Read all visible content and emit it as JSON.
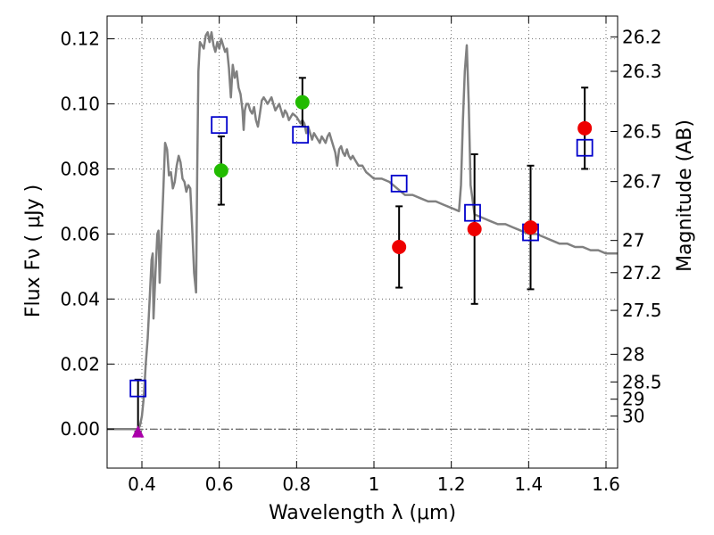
{
  "chart_data": {
    "type": "scatter",
    "xlabel": "Wavelength  λ (μm)",
    "ylabel": "Flux  Fν  ( μJy )",
    "ylabel_right": "Magnitude (AB)",
    "xlim": [
      0.31,
      1.63
    ],
    "ylim": [
      -0.012,
      0.127
    ],
    "grid": true,
    "x_ticks": [
      {
        "value": 0.4,
        "label": "0.4"
      },
      {
        "value": 0.6,
        "label": "0.6"
      },
      {
        "value": 0.8,
        "label": "0.8"
      },
      {
        "value": 1.0,
        "label": "1"
      },
      {
        "value": 1.2,
        "label": "1.2"
      },
      {
        "value": 1.4,
        "label": "1.4"
      },
      {
        "value": 1.6,
        "label": "1.6"
      }
    ],
    "y_ticks": [
      {
        "value": 0.0,
        "label": "0.00"
      },
      {
        "value": 0.02,
        "label": "0.02"
      },
      {
        "value": 0.04,
        "label": "0.04"
      },
      {
        "value": 0.06,
        "label": "0.06"
      },
      {
        "value": 0.08,
        "label": "0.08"
      },
      {
        "value": 0.1,
        "label": "0.10"
      },
      {
        "value": 0.12,
        "label": "0.12"
      }
    ],
    "right_ticks": [
      {
        "flux": 0.1206,
        "label": "26.2"
      },
      {
        "flux": 0.11,
        "label": "26.3"
      },
      {
        "flux": 0.0915,
        "label": "26.5"
      },
      {
        "flux": 0.0761,
        "label": "26.7"
      },
      {
        "flux": 0.058,
        "label": "27"
      },
      {
        "flux": 0.0481,
        "label": "27.2"
      },
      {
        "flux": 0.0365,
        "label": "27.5"
      },
      {
        "flux": 0.023,
        "label": "28"
      },
      {
        "flux": 0.0145,
        "label": "28.5"
      },
      {
        "flux": 0.0092,
        "label": "29"
      },
      {
        "flux": 0.004,
        "label": "30"
      }
    ],
    "series": [
      {
        "name": "model SED",
        "kind": "line",
        "color": "#808080",
        "points": [
          [
            0.31,
            0.0
          ],
          [
            0.39,
            0.0
          ],
          [
            0.395,
            0.001
          ],
          [
            0.4,
            0.004
          ],
          [
            0.405,
            0.01
          ],
          [
            0.41,
            0.02
          ],
          [
            0.415,
            0.028
          ],
          [
            0.42,
            0.04
          ],
          [
            0.425,
            0.052
          ],
          [
            0.428,
            0.054
          ],
          [
            0.43,
            0.034
          ],
          [
            0.435,
            0.048
          ],
          [
            0.44,
            0.06
          ],
          [
            0.443,
            0.061
          ],
          [
            0.446,
            0.045
          ],
          [
            0.45,
            0.058
          ],
          [
            0.455,
            0.072
          ],
          [
            0.46,
            0.088
          ],
          [
            0.465,
            0.086
          ],
          [
            0.47,
            0.078
          ],
          [
            0.475,
            0.079
          ],
          [
            0.48,
            0.074
          ],
          [
            0.485,
            0.076
          ],
          [
            0.49,
            0.081
          ],
          [
            0.495,
            0.084
          ],
          [
            0.5,
            0.082
          ],
          [
            0.505,
            0.077
          ],
          [
            0.51,
            0.076
          ],
          [
            0.515,
            0.073
          ],
          [
            0.52,
            0.075
          ],
          [
            0.525,
            0.074
          ],
          [
            0.53,
            0.062
          ],
          [
            0.535,
            0.048
          ],
          [
            0.54,
            0.042
          ],
          [
            0.543,
            0.08
          ],
          [
            0.546,
            0.11
          ],
          [
            0.55,
            0.119
          ],
          [
            0.555,
            0.118
          ],
          [
            0.56,
            0.117
          ],
          [
            0.565,
            0.121
          ],
          [
            0.57,
            0.122
          ],
          [
            0.575,
            0.119
          ],
          [
            0.58,
            0.122
          ],
          [
            0.585,
            0.118
          ],
          [
            0.59,
            0.116
          ],
          [
            0.595,
            0.119
          ],
          [
            0.6,
            0.117
          ],
          [
            0.605,
            0.12
          ],
          [
            0.61,
            0.118
          ],
          [
            0.615,
            0.116
          ],
          [
            0.62,
            0.117
          ],
          [
            0.625,
            0.111
          ],
          [
            0.63,
            0.102
          ],
          [
            0.635,
            0.112
          ],
          [
            0.64,
            0.108
          ],
          [
            0.645,
            0.11
          ],
          [
            0.65,
            0.105
          ],
          [
            0.655,
            0.103
          ],
          [
            0.66,
            0.098
          ],
          [
            0.663,
            0.092
          ],
          [
            0.666,
            0.098
          ],
          [
            0.67,
            0.1
          ],
          [
            0.675,
            0.1
          ],
          [
            0.68,
            0.098
          ],
          [
            0.685,
            0.097
          ],
          [
            0.69,
            0.099
          ],
          [
            0.695,
            0.095
          ],
          [
            0.7,
            0.093
          ],
          [
            0.705,
            0.097
          ],
          [
            0.71,
            0.101
          ],
          [
            0.715,
            0.102
          ],
          [
            0.72,
            0.101
          ],
          [
            0.725,
            0.1
          ],
          [
            0.73,
            0.101
          ],
          [
            0.735,
            0.102
          ],
          [
            0.74,
            0.1
          ],
          [
            0.745,
            0.098
          ],
          [
            0.75,
            0.099
          ],
          [
            0.755,
            0.1
          ],
          [
            0.76,
            0.098
          ],
          [
            0.765,
            0.096
          ],
          [
            0.77,
            0.098
          ],
          [
            0.775,
            0.097
          ],
          [
            0.78,
            0.095
          ],
          [
            0.785,
            0.096
          ],
          [
            0.79,
            0.097
          ],
          [
            0.8,
            0.096
          ],
          [
            0.81,
            0.094
          ],
          [
            0.815,
            0.095
          ],
          [
            0.82,
            0.094
          ],
          [
            0.825,
            0.091
          ],
          [
            0.83,
            0.093
          ],
          [
            0.835,
            0.091
          ],
          [
            0.84,
            0.089
          ],
          [
            0.845,
            0.091
          ],
          [
            0.85,
            0.09
          ],
          [
            0.855,
            0.089
          ],
          [
            0.86,
            0.088
          ],
          [
            0.865,
            0.09
          ],
          [
            0.87,
            0.089
          ],
          [
            0.875,
            0.088
          ],
          [
            0.88,
            0.09
          ],
          [
            0.885,
            0.091
          ],
          [
            0.89,
            0.089
          ],
          [
            0.895,
            0.087
          ],
          [
            0.9,
            0.085
          ],
          [
            0.905,
            0.081
          ],
          [
            0.91,
            0.086
          ],
          [
            0.915,
            0.087
          ],
          [
            0.92,
            0.085
          ],
          [
            0.925,
            0.084
          ],
          [
            0.93,
            0.086
          ],
          [
            0.935,
            0.084
          ],
          [
            0.94,
            0.083
          ],
          [
            0.945,
            0.084
          ],
          [
            0.95,
            0.083
          ],
          [
            0.96,
            0.081
          ],
          [
            0.97,
            0.081
          ],
          [
            0.98,
            0.079
          ],
          [
            0.99,
            0.078
          ],
          [
            1.0,
            0.077
          ],
          [
            1.02,
            0.077
          ],
          [
            1.04,
            0.076
          ],
          [
            1.06,
            0.074
          ],
          [
            1.08,
            0.072
          ],
          [
            1.1,
            0.072
          ],
          [
            1.12,
            0.071
          ],
          [
            1.14,
            0.07
          ],
          [
            1.16,
            0.07
          ],
          [
            1.18,
            0.069
          ],
          [
            1.2,
            0.068
          ],
          [
            1.22,
            0.067
          ],
          [
            1.225,
            0.075
          ],
          [
            1.23,
            0.095
          ],
          [
            1.235,
            0.11
          ],
          [
            1.24,
            0.118
          ],
          [
            1.245,
            0.1
          ],
          [
            1.25,
            0.075
          ],
          [
            1.26,
            0.066
          ],
          [
            1.28,
            0.065
          ],
          [
            1.3,
            0.064
          ],
          [
            1.32,
            0.063
          ],
          [
            1.34,
            0.063
          ],
          [
            1.36,
            0.062
          ],
          [
            1.38,
            0.061
          ],
          [
            1.4,
            0.06
          ],
          [
            1.42,
            0.06
          ],
          [
            1.44,
            0.059
          ],
          [
            1.46,
            0.058
          ],
          [
            1.48,
            0.057
          ],
          [
            1.5,
            0.057
          ],
          [
            1.52,
            0.056
          ],
          [
            1.54,
            0.056
          ],
          [
            1.56,
            0.055
          ],
          [
            1.58,
            0.055
          ],
          [
            1.6,
            0.054
          ],
          [
            1.63,
            0.054
          ]
        ]
      },
      {
        "name": "model photometry",
        "kind": "open-square",
        "color": "#0000cc",
        "points": [
          {
            "x": 0.39,
            "y": 0.0125
          },
          {
            "x": 0.6,
            "y": 0.0935
          },
          {
            "x": 0.81,
            "y": 0.0905
          },
          {
            "x": 1.065,
            "y": 0.0755
          },
          {
            "x": 1.255,
            "y": 0.0665
          },
          {
            "x": 1.405,
            "y": 0.0605
          },
          {
            "x": 1.545,
            "y": 0.0865
          }
        ]
      },
      {
        "name": "observed (green)",
        "kind": "filled-circle",
        "color": "#22bb00",
        "points": [
          {
            "x": 0.605,
            "y": 0.0795,
            "err": 0.0105
          },
          {
            "x": 0.815,
            "y": 0.1005,
            "err": 0.0075
          }
        ]
      },
      {
        "name": "observed (red)",
        "kind": "filled-circle",
        "color": "#ee0000",
        "points": [
          {
            "x": 1.065,
            "y": 0.056,
            "err": 0.0125
          },
          {
            "x": 1.26,
            "y": 0.0615,
            "err": 0.023
          },
          {
            "x": 1.405,
            "y": 0.062,
            "err": 0.019
          },
          {
            "x": 1.545,
            "y": 0.0925,
            "err": 0.0125
          }
        ]
      },
      {
        "name": "upper limit",
        "kind": "triangle",
        "color": "#aa00aa",
        "points": [
          {
            "x": 0.39,
            "y": -0.0008,
            "err_up": 0.016
          }
        ]
      }
    ]
  }
}
